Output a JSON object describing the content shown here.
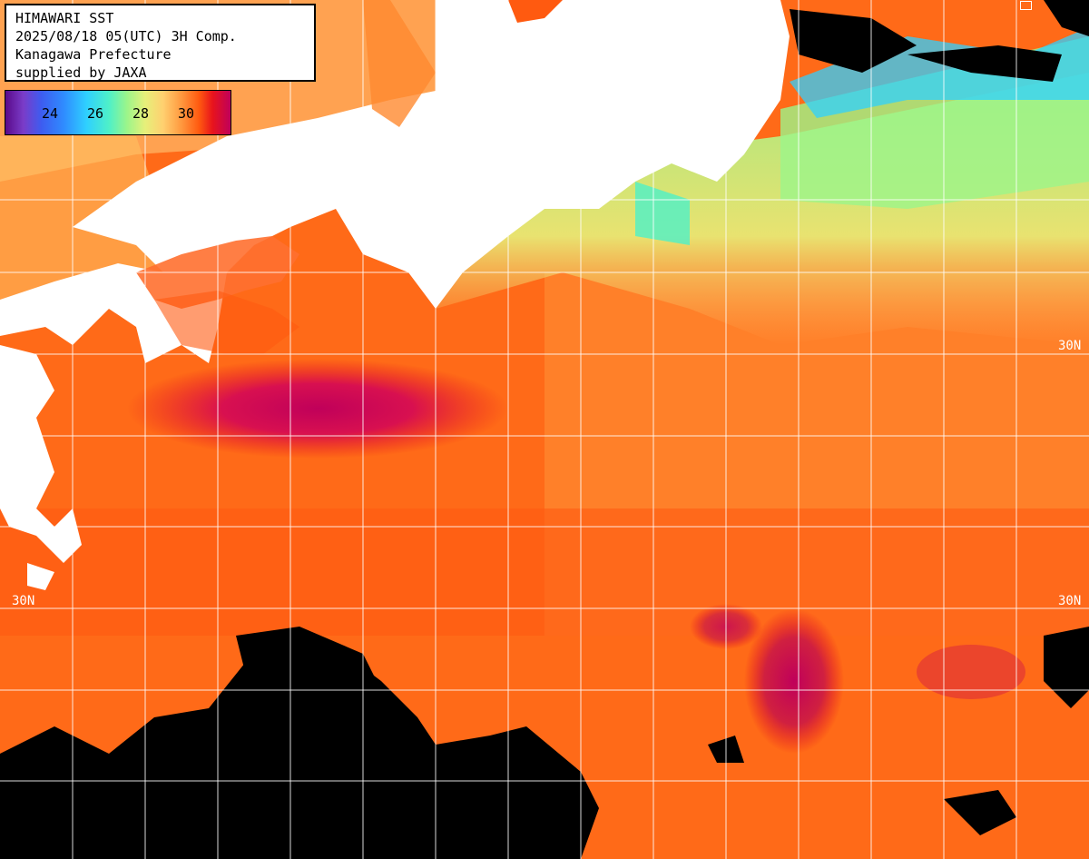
{
  "info": {
    "line1": "HIMAWARI SST",
    "line2": "2025/08/18 05(UTC) 3H Comp.",
    "line3": "Kanagawa Prefecture",
    "line4": "supplied by JAXA"
  },
  "colorbar": {
    "ticks": [
      "24",
      "26",
      "28",
      "30"
    ],
    "colors": {
      "cold": "#5a0a8a",
      "cool": "#2f8cff",
      "mild": "#9cf58a",
      "warm": "#ff9a40",
      "hot": "#e8141c",
      "hottest": "#c0005a"
    }
  },
  "grid": {
    "lat_labels": {
      "upper_right": "30N",
      "lower_left": "30N",
      "lower_right": "30N"
    }
  },
  "legend": {
    "land_color": "#ffffff",
    "cloud_color": "#000000"
  }
}
